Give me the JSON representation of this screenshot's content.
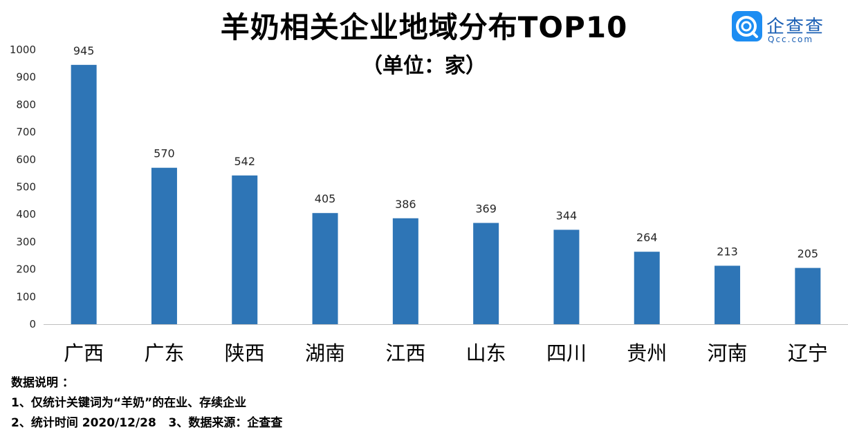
{
  "title": "羊奶相关企业地域分布TOP10",
  "subtitle": "（单位：家）",
  "logo": {
    "name": "企查查",
    "url": "Qcc.com",
    "icon": "qcc-logo-icon",
    "color": "#1d8df2"
  },
  "notes": {
    "heading": "数据说明 ：",
    "line1": "1、仅统计关键词为“羊奶”的在业、存续企业",
    "line2": "2、统计时间 2020/12/28   3、数据来源：企查查"
  },
  "chart_data": {
    "type": "bar",
    "title": "羊奶相关企业地域分布TOP10",
    "subtitle": "（单位：家）",
    "categories": [
      "广西",
      "广东",
      "陕西",
      "湖南",
      "江西",
      "山东",
      "四川",
      "贵州",
      "河南",
      "辽宁"
    ],
    "values": [
      945,
      570,
      542,
      405,
      386,
      369,
      344,
      264,
      213,
      205
    ],
    "yticks": [
      0,
      100,
      200,
      300,
      400,
      500,
      600,
      700,
      800,
      900,
      1000
    ],
    "ylim": [
      0,
      1000
    ],
    "grid": false,
    "legend": "none",
    "bar_color": "#2e75b6",
    "axis_color": "#bfbfbf"
  }
}
